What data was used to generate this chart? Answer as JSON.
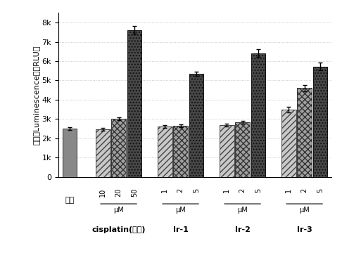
{
  "ylabel": "冷光（Luminescence）（RLU）",
  "ylim": [
    0,
    8500
  ],
  "yticks": [
    0,
    1000,
    2000,
    3000,
    4000,
    5000,
    6000,
    7000,
    8000
  ],
  "ytick_labels": [
    "0",
    "1k",
    "2k",
    "3k",
    "4k",
    "5k",
    "6k",
    "7k",
    "8k"
  ],
  "background_color": "#ffffff",
  "groups": [
    {
      "label": "对照",
      "bottom_label": "",
      "conc_labels": [],
      "bars": [
        {
          "value": 2500,
          "err": 80,
          "hatch": "none"
        }
      ]
    },
    {
      "label": "cisplatin(顺铂)",
      "bottom_label": "μM",
      "conc_labels": [
        "10",
        "20",
        "50"
      ],
      "bars": [
        {
          "value": 2480,
          "err": 70,
          "hatch": "diag"
        },
        {
          "value": 3020,
          "err": 80,
          "hatch": "check"
        },
        {
          "value": 7620,
          "err": 200,
          "hatch": "darkcheck"
        }
      ]
    },
    {
      "label": "Ir-1",
      "bottom_label": "μM",
      "conc_labels": [
        "1",
        "2",
        "5"
      ],
      "bars": [
        {
          "value": 2620,
          "err": 80,
          "hatch": "diag"
        },
        {
          "value": 2660,
          "err": 70,
          "hatch": "check"
        },
        {
          "value": 5350,
          "err": 100,
          "hatch": "darkcheck"
        }
      ]
    },
    {
      "label": "Ir-2",
      "bottom_label": "μM",
      "conc_labels": [
        "1",
        "2",
        "5"
      ],
      "bars": [
        {
          "value": 2680,
          "err": 70,
          "hatch": "diag"
        },
        {
          "value": 2830,
          "err": 70,
          "hatch": "check"
        },
        {
          "value": 6420,
          "err": 200,
          "hatch": "darkcheck"
        }
      ]
    },
    {
      "label": "Ir-3",
      "bottom_label": "μM",
      "conc_labels": [
        "1",
        "2",
        "5"
      ],
      "bars": [
        {
          "value": 3480,
          "err": 150,
          "hatch": "diag"
        },
        {
          "value": 4600,
          "err": 150,
          "hatch": "check"
        },
        {
          "value": 5720,
          "err": 200,
          "hatch": "darkcheck"
        }
      ]
    }
  ],
  "bar_width": 0.6,
  "fontsize_ylabel": 8,
  "fontsize_ticks": 8
}
